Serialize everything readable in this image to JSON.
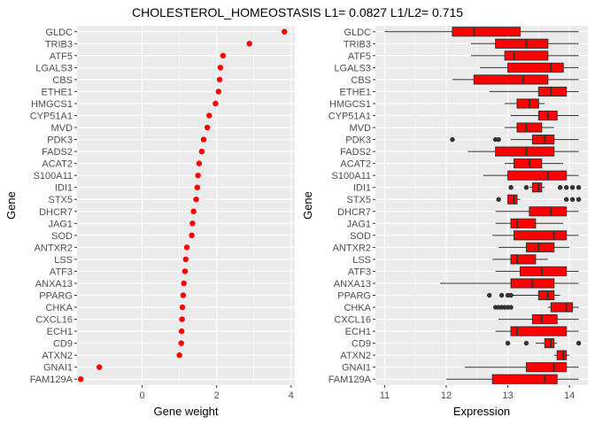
{
  "title": "CHOLESTEROL_HOMEOSTASIS L1= 0.0827 L1/L2= 0.715",
  "colors": {
    "panel_bg": "#ebebeb",
    "grid_major": "#ffffff",
    "point": "#ff0000",
    "box_fill": "#ff0000",
    "box_line": "#333333",
    "outlier": "#333333",
    "label": "#4d4d4d"
  },
  "chart_data": [
    {
      "type": "scatter",
      "xlabel": "Gene weight",
      "ylabel": "Gene",
      "xlim": [
        -1.75,
        4.1
      ],
      "xticks": [
        0,
        2,
        4
      ],
      "grid": true,
      "genes": [
        "GLDC",
        "TRIB3",
        "ATF5",
        "LGALS3",
        "CBS",
        "ETHE1",
        "HMGCS1",
        "CYP51A1",
        "MVD",
        "PDK3",
        "FADS2",
        "ACAT2",
        "S100A11",
        "IDI1",
        "STX5",
        "DHCR7",
        "JAG1",
        "SOD",
        "ANTXR2",
        "LSS",
        "ATF3",
        "ANXA13",
        "PPARG",
        "CHKA",
        "CXCL16",
        "ECH1",
        "CD9",
        "ATXN2",
        "GNAI1",
        "FAM129A"
      ],
      "values": [
        3.82,
        2.88,
        2.17,
        2.1,
        2.08,
        2.05,
        1.97,
        1.8,
        1.75,
        1.65,
        1.6,
        1.53,
        1.5,
        1.48,
        1.45,
        1.38,
        1.35,
        1.33,
        1.2,
        1.17,
        1.15,
        1.12,
        1.1,
        1.08,
        1.07,
        1.06,
        1.05,
        1.0,
        -1.15,
        -1.65
      ]
    },
    {
      "type": "box",
      "xlabel": "Expression",
      "ylabel": "Gene",
      "xlim": [
        10.85,
        14.3
      ],
      "xticks": [
        11,
        12,
        13,
        14
      ],
      "grid": true,
      "genes": [
        "GLDC",
        "TRIB3",
        "ATF5",
        "LGALS3",
        "CBS",
        "ETHE1",
        "HMGCS1",
        "CYP51A1",
        "MVD",
        "PDK3",
        "FADS2",
        "ACAT2",
        "S100A11",
        "IDI1",
        "STX5",
        "DHCR7",
        "JAG1",
        "SOD",
        "ANTXR2",
        "LSS",
        "ATF3",
        "ANXA13",
        "PPARG",
        "CHKA",
        "CXCL16",
        "ECH1",
        "CD9",
        "ATXN2",
        "GNAI1",
        "FAM129A"
      ],
      "boxes": [
        {
          "min": 11.0,
          "q1": 12.1,
          "median": 12.45,
          "q3": 13.2,
          "max": 14.15,
          "outliers": []
        },
        {
          "min": 12.4,
          "q1": 12.8,
          "median": 13.3,
          "q3": 13.65,
          "max": 14.15,
          "outliers": []
        },
        {
          "min": 12.4,
          "q1": 12.95,
          "median": 13.1,
          "q3": 13.65,
          "max": 14.15,
          "outliers": []
        },
        {
          "min": 12.55,
          "q1": 13.0,
          "median": 13.7,
          "q3": 13.9,
          "max": 14.15,
          "outliers": []
        },
        {
          "min": 12.1,
          "q1": 12.45,
          "median": 13.25,
          "q3": 13.65,
          "max": 14.15,
          "outliers": []
        },
        {
          "min": 12.7,
          "q1": 13.5,
          "median": 13.7,
          "q3": 13.95,
          "max": 14.15,
          "outliers": []
        },
        {
          "min": 12.95,
          "q1": 13.15,
          "median": 13.35,
          "q3": 13.5,
          "max": 13.6,
          "outliers": []
        },
        {
          "min": 13.05,
          "q1": 13.5,
          "median": 13.65,
          "q3": 13.8,
          "max": 14.15,
          "outliers": []
        },
        {
          "min": 12.95,
          "q1": 13.15,
          "median": 13.3,
          "q3": 13.55,
          "max": 13.75,
          "outliers": []
        },
        {
          "min": 13.05,
          "q1": 13.4,
          "median": 13.6,
          "q3": 13.75,
          "max": 14.15,
          "outliers": [
            12.1,
            12.8,
            12.85
          ]
        },
        {
          "min": 12.35,
          "q1": 12.8,
          "median": 13.3,
          "q3": 13.75,
          "max": 14.15,
          "outliers": []
        },
        {
          "min": 12.95,
          "q1": 13.1,
          "median": 13.35,
          "q3": 13.55,
          "max": 13.9,
          "outliers": []
        },
        {
          "min": 12.6,
          "q1": 13.0,
          "median": 13.65,
          "q3": 13.95,
          "max": 14.15,
          "outliers": []
        },
        {
          "min": 13.35,
          "q1": 13.4,
          "median": 13.5,
          "q3": 13.55,
          "max": 13.6,
          "outliers": [
            13.05,
            13.3,
            13.85,
            13.95,
            14.05,
            14.15
          ]
        },
        {
          "min": 13.0,
          "q1": 13.0,
          "median": 13.1,
          "q3": 13.15,
          "max": 13.2,
          "outliers": [
            12.85,
            13.95,
            14.05,
            14.15
          ]
        },
        {
          "min": 12.8,
          "q1": 13.35,
          "median": 13.7,
          "q3": 13.95,
          "max": 14.15,
          "outliers": []
        },
        {
          "min": 12.8,
          "q1": 13.05,
          "median": 13.15,
          "q3": 13.45,
          "max": 13.9,
          "outliers": []
        },
        {
          "min": 12.75,
          "q1": 13.1,
          "median": 13.75,
          "q3": 13.95,
          "max": 14.15,
          "outliers": []
        },
        {
          "min": 12.85,
          "q1": 13.3,
          "median": 13.5,
          "q3": 13.75,
          "max": 14.0,
          "outliers": []
        },
        {
          "min": 12.75,
          "q1": 13.05,
          "median": 13.15,
          "q3": 13.45,
          "max": 13.65,
          "outliers": []
        },
        {
          "min": 12.8,
          "q1": 13.2,
          "median": 13.55,
          "q3": 13.95,
          "max": 14.15,
          "outliers": []
        },
        {
          "min": 11.9,
          "q1": 13.05,
          "median": 13.4,
          "q3": 13.75,
          "max": 14.15,
          "outliers": []
        },
        {
          "min": 13.05,
          "q1": 13.5,
          "median": 13.65,
          "q3": 13.75,
          "max": 13.85,
          "outliers": [
            12.7,
            12.9,
            13.0,
            13.05
          ]
        },
        {
          "min": 13.65,
          "q1": 13.7,
          "median": 13.95,
          "q3": 14.05,
          "max": 14.15,
          "outliers": [
            12.8,
            12.85,
            12.9,
            12.95,
            13.0,
            13.05
          ]
        },
        {
          "min": 12.85,
          "q1": 13.4,
          "median": 13.55,
          "q3": 13.8,
          "max": 14.15,
          "outliers": []
        },
        {
          "min": 12.8,
          "q1": 13.05,
          "median": 13.15,
          "q3": 13.95,
          "max": 14.15,
          "outliers": []
        },
        {
          "min": 13.45,
          "q1": 13.6,
          "median": 13.7,
          "q3": 13.75,
          "max": 13.8,
          "outliers": [
            13.0,
            13.3,
            14.15
          ]
        },
        {
          "min": 13.75,
          "q1": 13.8,
          "median": 13.9,
          "q3": 13.95,
          "max": 14.0,
          "outliers": []
        },
        {
          "min": 12.3,
          "q1": 13.3,
          "median": 13.75,
          "q3": 13.95,
          "max": 14.15,
          "outliers": []
        },
        {
          "min": 12.0,
          "q1": 12.75,
          "median": 13.6,
          "q3": 13.8,
          "max": 14.15,
          "outliers": []
        }
      ]
    }
  ]
}
